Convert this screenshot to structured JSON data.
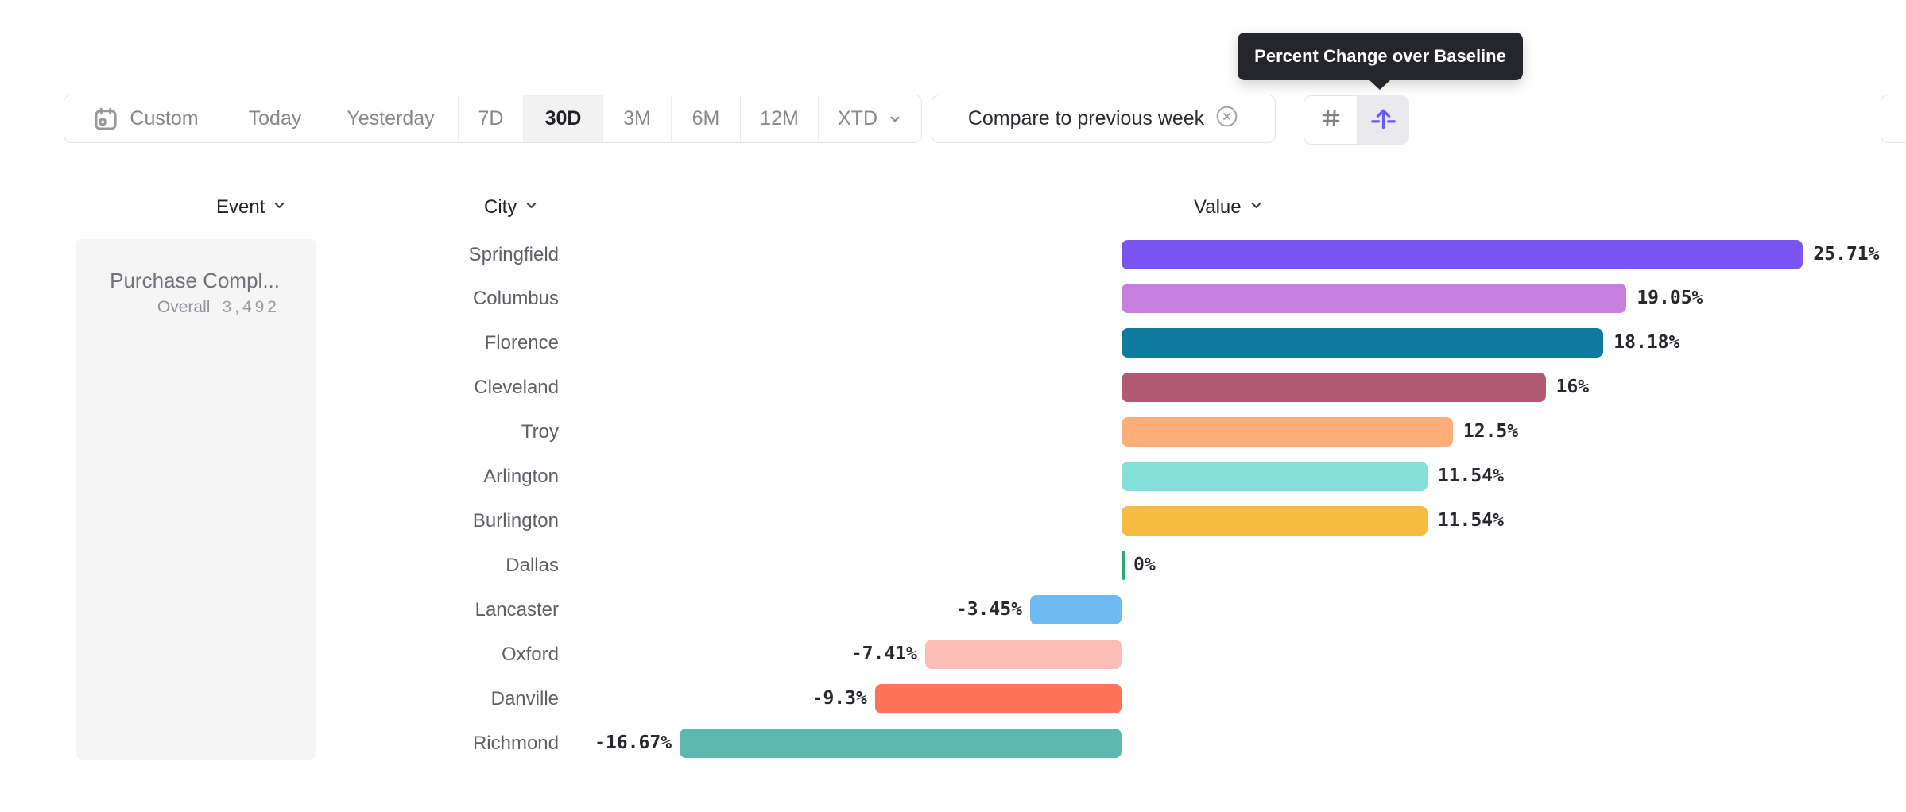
{
  "tooltip": {
    "text": "Percent Change over Baseline",
    "bg_color": "#24262b"
  },
  "toolbar": {
    "date_ranges": [
      {
        "label": "Custom",
        "icon": "calendar-icon",
        "selected": false
      },
      {
        "label": "Today",
        "selected": false
      },
      {
        "label": "Yesterday",
        "selected": false
      },
      {
        "label": "7D",
        "selected": false
      },
      {
        "label": "30D",
        "selected": true
      },
      {
        "label": "3M",
        "selected": false
      },
      {
        "label": "6M",
        "selected": false
      },
      {
        "label": "12M",
        "selected": false
      },
      {
        "label": "XTD",
        "icon": "chevron-down-icon",
        "selected": false
      }
    ],
    "compare": {
      "label": "Compare to previous week",
      "remove_icon": "close-circle-icon"
    },
    "view_toggles": [
      {
        "name": "absolute-numbers",
        "icon": "hash-icon",
        "active": false
      },
      {
        "name": "percent-change-over-baseline",
        "icon": "baseline-arrow-icon",
        "active": true,
        "accent_color": "#6a5ce8"
      }
    ]
  },
  "columns": {
    "event": "Event",
    "city": "City",
    "value": "Value",
    "sort_icon": "chevron-down-icon"
  },
  "event_panel": {
    "event_name": "Purchase Compl...",
    "overall_label": "Overall",
    "overall_value": "3,492"
  },
  "chart_data": {
    "type": "bar",
    "orientation": "horizontal",
    "title": "",
    "xlabel": "Percent change over baseline",
    "unit": "%",
    "baseline": 0,
    "xlim": [
      -16.67,
      25.71
    ],
    "categories": [
      "Springfield",
      "Columbus",
      "Florence",
      "Cleveland",
      "Troy",
      "Arlington",
      "Burlington",
      "Dallas",
      "Lancaster",
      "Oxford",
      "Danville",
      "Richmond"
    ],
    "values": [
      25.71,
      19.05,
      18.18,
      16,
      12.5,
      11.54,
      11.54,
      0,
      -3.45,
      -7.41,
      -9.3,
      -16.67
    ],
    "labels": [
      "25.71%",
      "19.05%",
      "18.18%",
      "16%",
      "12.5%",
      "11.54%",
      "11.54%",
      "0%",
      "-3.45%",
      "-7.41%",
      "-9.3%",
      "-16.67%"
    ],
    "colors": [
      "#7b55f2",
      "#c77fdd",
      "#0f7a9e",
      "#b25a73",
      "#fdae78",
      "#83e0d8",
      "#f6bc41",
      "#2aa876",
      "#70baf2",
      "#fbbdb5",
      "#fd7357",
      "#5cb7ac"
    ],
    "zero_tick_color": "#2aa876",
    "grid": false,
    "legend": false
  }
}
